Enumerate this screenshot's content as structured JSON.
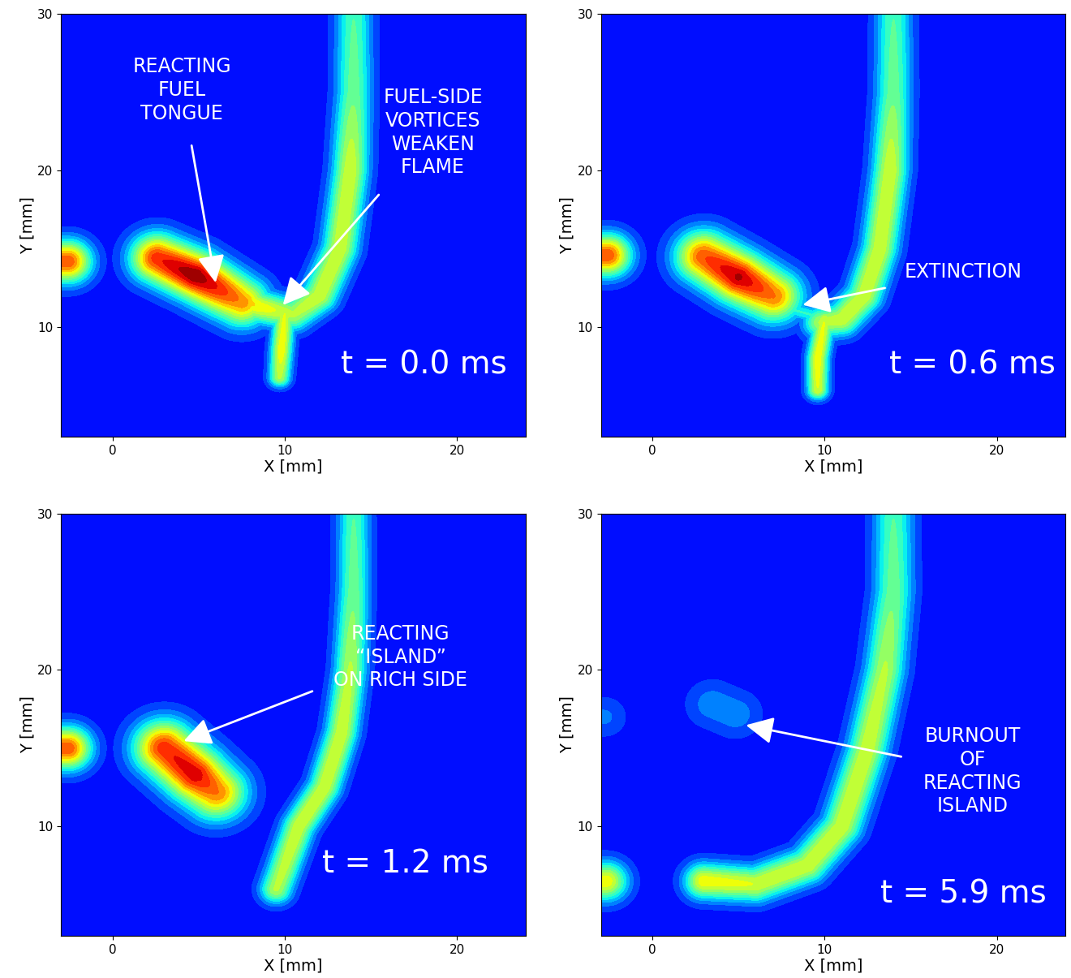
{
  "chart_data": [
    {
      "type": "contour",
      "xlabel": "X [mm]",
      "ylabel": "Y [mm]",
      "xlim": [
        -3,
        24
      ],
      "ylim": [
        3,
        30
      ],
      "xticks": [
        0,
        10,
        20
      ],
      "yticks": [
        10,
        20,
        30
      ],
      "color": "jet",
      "crange": [
        -0.15,
        1.0
      ],
      "time": "t = 0.0 ms",
      "annotations": [
        {
          "text": "REACTING\nFUEL\nTONGUE",
          "xy": [
            6.0,
            12.7
          ]
        },
        {
          "text": "FUEL-SIDE\nVORTICES\nWEAKEN\nFLAME",
          "xy": [
            9.8,
            11.3
          ]
        }
      ],
      "features": [
        {
          "path": [
            [
              -3.5,
              14.2
            ],
            [
              -2.6,
              14.2
            ]
          ],
          "intensity": [
            0.8,
            0.8
          ],
          "width": 1.3
        },
        {
          "path": [
            [
              2.6,
              14.4
            ],
            [
              4.8,
              13.3
            ],
            [
              7.5,
              11.6
            ]
          ],
          "intensity": [
            0.85,
            1.0,
            0.72
          ],
          "width": 1.5
        },
        {
          "path": [
            [
              14.0,
              31.0
            ],
            [
              14.0,
              25.0
            ],
            [
              13.8,
              20.0
            ],
            [
              13.2,
              15.0
            ],
            [
              12.0,
              12.0
            ],
            [
              10.5,
              10.8
            ],
            [
              8.5,
              11.3
            ],
            [
              7.0,
              12.0
            ]
          ],
          "intensity": [
            0.35,
            0.4,
            0.55,
            0.55,
            0.55,
            0.5,
            0.6,
            0.7
          ],
          "width": 1.0
        },
        {
          "path": [
            [
              10.0,
              11.0
            ],
            [
              9.8,
              8.5
            ],
            [
              9.7,
              6.8
            ]
          ],
          "intensity": [
            0.55,
            0.6,
            0.5
          ],
          "width": 0.6
        }
      ]
    },
    {
      "type": "contour",
      "xlabel": "X [mm]",
      "ylabel": "Y [mm]",
      "xlim": [
        -3,
        24
      ],
      "ylim": [
        3,
        30
      ],
      "xticks": [
        0,
        10,
        20
      ],
      "yticks": [
        10,
        20,
        30
      ],
      "color": "jet",
      "crange": [
        -0.15,
        1.0
      ],
      "time": "t = 0.6 ms",
      "annotations": [
        {
          "text": "EXTINCTION",
          "xy": [
            8.6,
            11.4
          ]
        }
      ],
      "features": [
        {
          "path": [
            [
              -3.5,
              14.6
            ],
            [
              -2.6,
              14.6
            ]
          ],
          "intensity": [
            0.8,
            0.8
          ],
          "width": 1.3
        },
        {
          "path": [
            [
              3.0,
              14.5
            ],
            [
              5.0,
              13.2
            ],
            [
              7.0,
              12.0
            ]
          ],
          "intensity": [
            0.8,
            0.95,
            0.75
          ],
          "width": 1.6
        },
        {
          "path": [
            [
              7.5,
              11.3
            ],
            [
              9.2,
              10.8
            ]
          ],
          "intensity": [
            0.3,
            0.3
          ],
          "width": 0.5
        },
        {
          "path": [
            [
              14.0,
              31.0
            ],
            [
              14.0,
              25.0
            ],
            [
              13.8,
              20.0
            ],
            [
              13.2,
              15.0
            ],
            [
              12.3,
              12.0
            ],
            [
              11.0,
              10.5
            ],
            [
              9.8,
              10.3
            ]
          ],
          "intensity": [
            0.35,
            0.4,
            0.55,
            0.55,
            0.55,
            0.55,
            0.5
          ],
          "width": 1.0
        },
        {
          "path": [
            [
              10.0,
              10.5
            ],
            [
              9.6,
              8.0
            ],
            [
              9.6,
              6.0
            ]
          ],
          "intensity": [
            0.55,
            0.6,
            0.55
          ],
          "width": 0.6
        }
      ]
    },
    {
      "type": "contour",
      "xlabel": "X [mm]",
      "ylabel": "Y [mm]",
      "xlim": [
        -3,
        24
      ],
      "ylim": [
        3,
        30
      ],
      "xticks": [
        0,
        10,
        20
      ],
      "yticks": [
        10,
        20,
        30
      ],
      "color": "jet",
      "crange": [
        -0.15,
        1.0
      ],
      "time": "t = 1.2 ms",
      "annotations": [
        {
          "text": "REACTING\n“ISLAND”\nON RICH SIDE",
          "xy": [
            4.0,
            15.4
          ]
        }
      ],
      "features": [
        {
          "path": [
            [
              -3.5,
              15.0
            ],
            [
              -2.6,
              15.0
            ]
          ],
          "intensity": [
            0.8,
            0.8
          ],
          "width": 1.3
        },
        {
          "path": [
            [
              3.0,
              15.0
            ],
            [
              4.8,
              13.3
            ],
            [
              6.0,
              12.2
            ]
          ],
          "intensity": [
            0.85,
            0.92,
            0.75
          ],
          "width": 1.7
        },
        {
          "path": [
            [
              14.0,
              31.0
            ],
            [
              14.0,
              25.0
            ],
            [
              13.8,
              20.0
            ],
            [
              13.3,
              16.0
            ],
            [
              12.3,
              12.5
            ],
            [
              10.8,
              10.0
            ],
            [
              9.5,
              6.0
            ]
          ],
          "intensity": [
            0.35,
            0.4,
            0.5,
            0.55,
            0.55,
            0.55,
            0.5
          ],
          "width": 0.9
        }
      ]
    },
    {
      "type": "contour",
      "xlabel": "X [mm]",
      "ylabel": "Y [mm]",
      "xlim": [
        -3,
        24
      ],
      "ylim": [
        3,
        30
      ],
      "xticks": [
        0,
        10,
        20
      ],
      "yticks": [
        10,
        20,
        30
      ],
      "color": "jet",
      "crange": [
        -0.15,
        1.0
      ],
      "time": "t = 5.9 ms",
      "annotations": [
        {
          "text": "BURNOUT\nOF\nREACTING\nISLAND",
          "xy": [
            5.3,
            16.5
          ]
        }
      ],
      "features": [
        {
          "path": [
            [
              -3.5,
              6.5
            ],
            [
              -2.7,
              6.5
            ]
          ],
          "intensity": [
            0.6,
            0.6
          ],
          "width": 1.2
        },
        {
          "path": [
            [
              3.5,
              17.8
            ],
            [
              4.8,
              17.2
            ]
          ],
          "intensity": [
            0.15,
            0.15
          ],
          "width": 1.4
        },
        {
          "path": [
            [
              -3.5,
              17.0
            ],
            [
              -2.8,
              17.0
            ]
          ],
          "intensity": [
            0.12,
            0.12
          ],
          "width": 1.2
        },
        {
          "path": [
            [
              14.0,
              31.0
            ],
            [
              14.0,
              25.0
            ],
            [
              13.5,
              20.0
            ],
            [
              12.5,
              15.0
            ],
            [
              11.0,
              10.0
            ],
            [
              9.0,
              7.5
            ],
            [
              6.0,
              6.3
            ],
            [
              3.0,
              6.5
            ]
          ],
          "intensity": [
            0.35,
            0.4,
            0.5,
            0.55,
            0.55,
            0.55,
            0.55,
            0.6
          ],
          "width": 1.1
        }
      ]
    }
  ]
}
